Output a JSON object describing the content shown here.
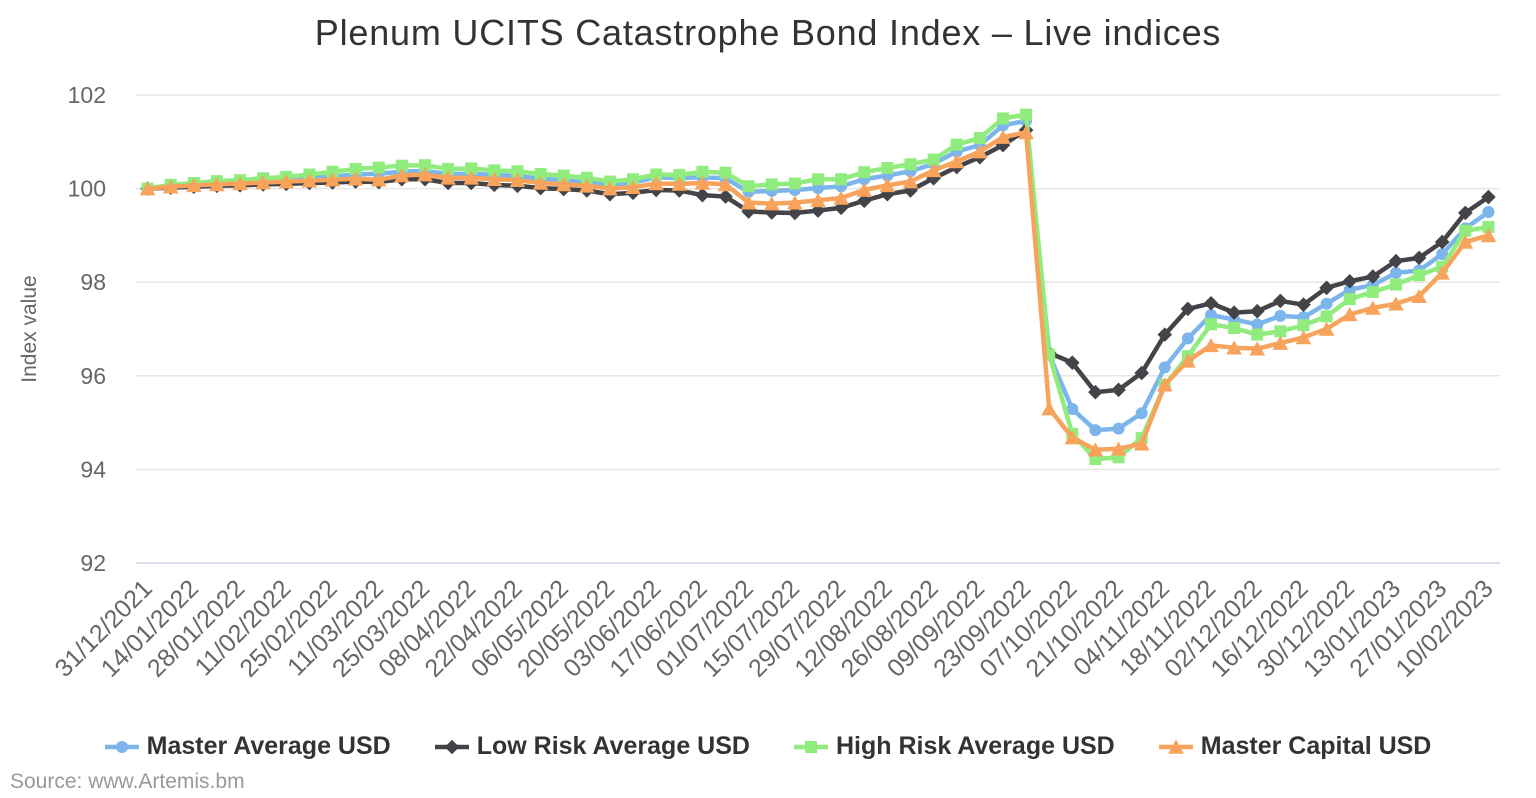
{
  "source": "Source: www.Artemis.bm",
  "chart_data": {
    "type": "line",
    "title": "Plenum UCITS Catastrophe Bond Index – Live indices",
    "xlabel": "",
    "ylabel": "Index value",
    "ylim": [
      92,
      102
    ],
    "y_ticks": [
      92,
      94,
      96,
      98,
      100,
      102
    ],
    "grid": true,
    "legend_position": "bottom",
    "categories": [
      "31/12/2021",
      "07/01/2022",
      "14/01/2022",
      "21/01/2022",
      "28/01/2022",
      "04/02/2022",
      "11/02/2022",
      "18/02/2022",
      "25/02/2022",
      "04/03/2022",
      "11/03/2022",
      "18/03/2022",
      "25/03/2022",
      "01/04/2022",
      "08/04/2022",
      "15/04/2022",
      "22/04/2022",
      "29/04/2022",
      "06/05/2022",
      "13/05/2022",
      "20/05/2022",
      "27/05/2022",
      "03/06/2022",
      "10/06/2022",
      "17/06/2022",
      "24/06/2022",
      "01/07/2022",
      "08/07/2022",
      "15/07/2022",
      "22/07/2022",
      "29/07/2022",
      "05/08/2022",
      "12/08/2022",
      "19/08/2022",
      "26/08/2022",
      "02/09/2022",
      "09/09/2022",
      "16/09/2022",
      "23/09/2022",
      "30/09/2022",
      "07/10/2022",
      "14/10/2022",
      "21/10/2022",
      "28/10/2022",
      "04/11/2022",
      "11/11/2022",
      "18/11/2022",
      "25/11/2022",
      "02/12/2022",
      "09/12/2022",
      "16/12/2022",
      "23/12/2022",
      "30/12/2022",
      "06/01/2023",
      "13/01/2023",
      "20/01/2023",
      "27/01/2023",
      "03/02/2023",
      "10/02/2023"
    ],
    "x_tick_labels": [
      "31/12/2021",
      "14/01/2022",
      "28/01/2022",
      "11/02/2022",
      "25/02/2022",
      "11/03/2022",
      "25/03/2022",
      "08/04/2022",
      "22/04/2022",
      "06/05/2022",
      "20/05/2022",
      "03/06/2022",
      "17/06/2022",
      "01/07/2022",
      "15/07/2022",
      "29/07/2022",
      "12/08/2022",
      "26/08/2022",
      "09/09/2022",
      "23/09/2022",
      "07/10/2022",
      "21/10/2022",
      "04/11/2022",
      "18/11/2022",
      "02/12/2022",
      "16/12/2022",
      "30/12/2022",
      "13/01/2023",
      "27/01/2023",
      "10/02/2023"
    ],
    "series": [
      {
        "name": "Master Average USD",
        "color": "#7cb5ec",
        "marker": "circle",
        "values": [
          100.0,
          100.05,
          100.08,
          100.11,
          100.13,
          100.16,
          100.18,
          100.22,
          100.26,
          100.3,
          100.32,
          100.36,
          100.38,
          100.31,
          100.32,
          100.29,
          100.27,
          100.21,
          100.18,
          100.13,
          100.08,
          100.13,
          100.24,
          100.23,
          100.24,
          100.22,
          99.93,
          99.95,
          99.97,
          100.01,
          100.05,
          100.2,
          100.28,
          100.37,
          100.53,
          100.79,
          100.93,
          101.35,
          101.45,
          96.45,
          95.29,
          94.84,
          94.87,
          95.2,
          96.18,
          96.8,
          97.3,
          97.2,
          97.1,
          97.28,
          97.25,
          97.54,
          97.84,
          97.94,
          98.2,
          98.25,
          98.6,
          99.15,
          99.5
        ]
      },
      {
        "name": "Low Risk Average USD",
        "color": "#434348",
        "marker": "diamond",
        "values": [
          100.0,
          100.02,
          100.04,
          100.06,
          100.07,
          100.09,
          100.1,
          100.12,
          100.13,
          100.15,
          100.14,
          100.2,
          100.2,
          100.12,
          100.12,
          100.08,
          100.06,
          100.01,
          99.99,
          99.96,
          99.88,
          99.91,
          99.97,
          99.96,
          99.86,
          99.83,
          99.51,
          99.49,
          99.48,
          99.53,
          99.59,
          99.74,
          99.88,
          99.96,
          100.22,
          100.46,
          100.67,
          100.93,
          101.25,
          96.49,
          96.28,
          95.65,
          95.7,
          96.06,
          96.88,
          97.43,
          97.55,
          97.35,
          97.38,
          97.6,
          97.52,
          97.88,
          98.02,
          98.12,
          98.45,
          98.52,
          98.86,
          99.48,
          99.82
        ]
      },
      {
        "name": "High Risk Average USD",
        "color": "#90ed7d",
        "marker": "square",
        "values": [
          100.0,
          100.08,
          100.12,
          100.16,
          100.18,
          100.22,
          100.25,
          100.3,
          100.36,
          100.42,
          100.45,
          100.49,
          100.5,
          100.42,
          100.43,
          100.39,
          100.37,
          100.31,
          100.28,
          100.23,
          100.15,
          100.2,
          100.3,
          100.29,
          100.36,
          100.34,
          100.05,
          100.09,
          100.11,
          100.2,
          100.2,
          100.35,
          100.44,
          100.52,
          100.62,
          100.94,
          101.08,
          101.5,
          101.58,
          96.45,
          94.76,
          94.22,
          94.26,
          94.67,
          95.8,
          96.42,
          97.1,
          97.02,
          96.88,
          96.95,
          97.08,
          97.27,
          97.64,
          97.79,
          97.95,
          98.15,
          98.33,
          99.1,
          99.18
        ]
      },
      {
        "name": "Master Capital USD",
        "color": "#f7a35c",
        "marker": "triangle",
        "values": [
          100.0,
          100.04,
          100.07,
          100.09,
          100.11,
          100.13,
          100.15,
          100.17,
          100.19,
          100.21,
          100.19,
          100.28,
          100.3,
          100.23,
          100.23,
          100.2,
          100.18,
          100.12,
          100.09,
          100.06,
          100.0,
          100.03,
          100.11,
          100.1,
          100.12,
          100.09,
          99.7,
          99.68,
          99.7,
          99.75,
          99.8,
          99.97,
          100.07,
          100.15,
          100.39,
          100.58,
          100.79,
          101.1,
          101.2,
          95.3,
          94.68,
          94.42,
          94.44,
          94.55,
          95.81,
          96.32,
          96.65,
          96.6,
          96.58,
          96.7,
          96.82,
          97.0,
          97.31,
          97.45,
          97.54,
          97.7,
          98.2,
          98.86,
          99.0
        ]
      }
    ],
    "colors": {
      "grid_line": "#e6e6e6",
      "axis_line": "#ccd6eb",
      "title_text": "#333333",
      "axis_label_text": "#666666",
      "legend_text": "#333333",
      "source_text": "#999999",
      "background": "#ffffff"
    }
  }
}
